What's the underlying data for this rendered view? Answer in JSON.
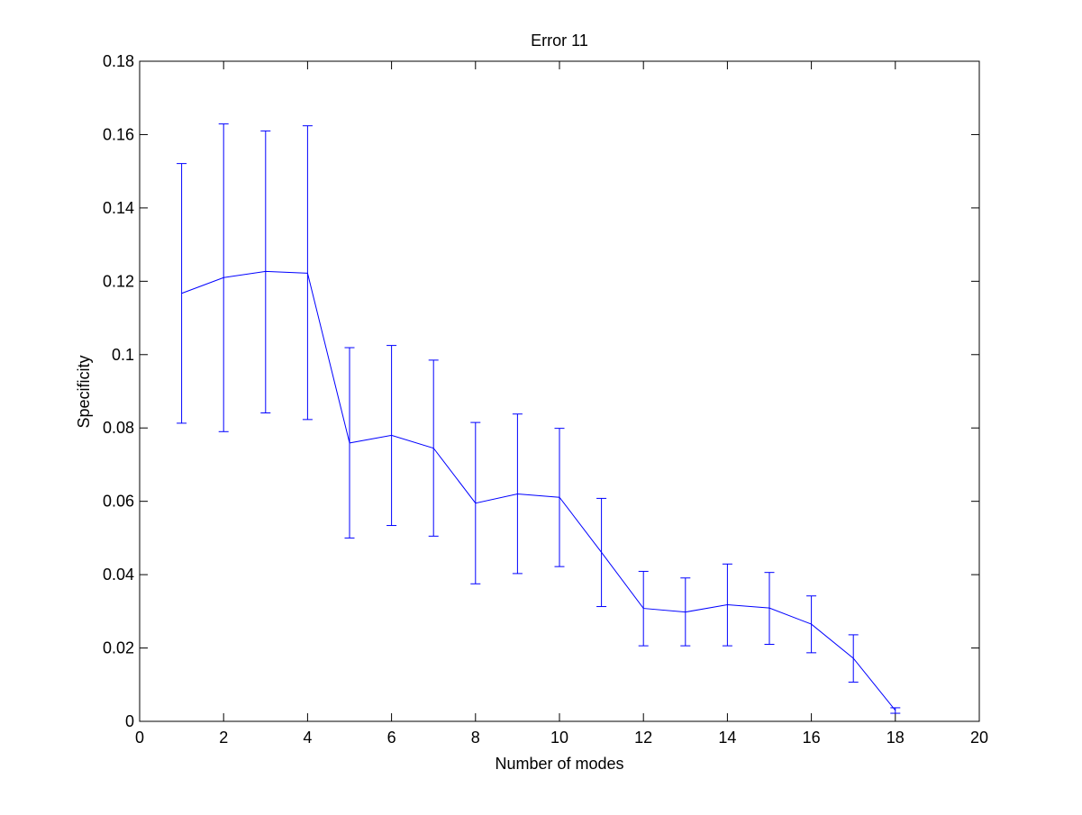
{
  "chart_data": {
    "type": "line",
    "title": "Error 11",
    "xlabel": "Number of modes",
    "ylabel": "Specificity",
    "xlim": [
      0,
      20
    ],
    "ylim": [
      0,
      0.18
    ],
    "xticks": [
      0,
      2,
      4,
      6,
      8,
      10,
      12,
      14,
      16,
      18,
      20
    ],
    "yticks": [
      0,
      0.02,
      0.04,
      0.06,
      0.08,
      0.1,
      0.12,
      0.14,
      0.16,
      0.18
    ],
    "xtick_labels": [
      "0",
      "2",
      "4",
      "6",
      "8",
      "10",
      "12",
      "14",
      "16",
      "18",
      "20"
    ],
    "ytick_labels": [
      "0",
      "0.02",
      "0.04",
      "0.06",
      "0.08",
      "0.1",
      "0.12",
      "0.14",
      "0.16",
      "0.18"
    ],
    "grid": false,
    "series": [
      {
        "color": "#0000ff",
        "x": [
          1,
          2,
          3,
          4,
          5,
          6,
          7,
          8,
          9,
          10,
          11,
          12,
          13,
          14,
          15,
          16,
          17,
          18
        ],
        "y": [
          0.1167,
          0.121,
          0.1227,
          0.1222,
          0.0759,
          0.078,
          0.0745,
          0.0595,
          0.062,
          0.0611,
          0.0461,
          0.0308,
          0.0298,
          0.0318,
          0.0309,
          0.0265,
          0.0172,
          0.003
        ],
        "err_low": [
          0.0813,
          0.079,
          0.0841,
          0.0823,
          0.05,
          0.0534,
          0.0505,
          0.0375,
          0.0403,
          0.0422,
          0.0313,
          0.0206,
          0.0206,
          0.0206,
          0.021,
          0.0187,
          0.0107,
          0.0022
        ],
        "err_high": [
          0.1521,
          0.1629,
          0.161,
          0.1624,
          0.1019,
          0.1025,
          0.0985,
          0.0815,
          0.0838,
          0.0799,
          0.0608,
          0.0409,
          0.0391,
          0.0429,
          0.0406,
          0.0342,
          0.0236,
          0.0037
        ]
      }
    ]
  }
}
